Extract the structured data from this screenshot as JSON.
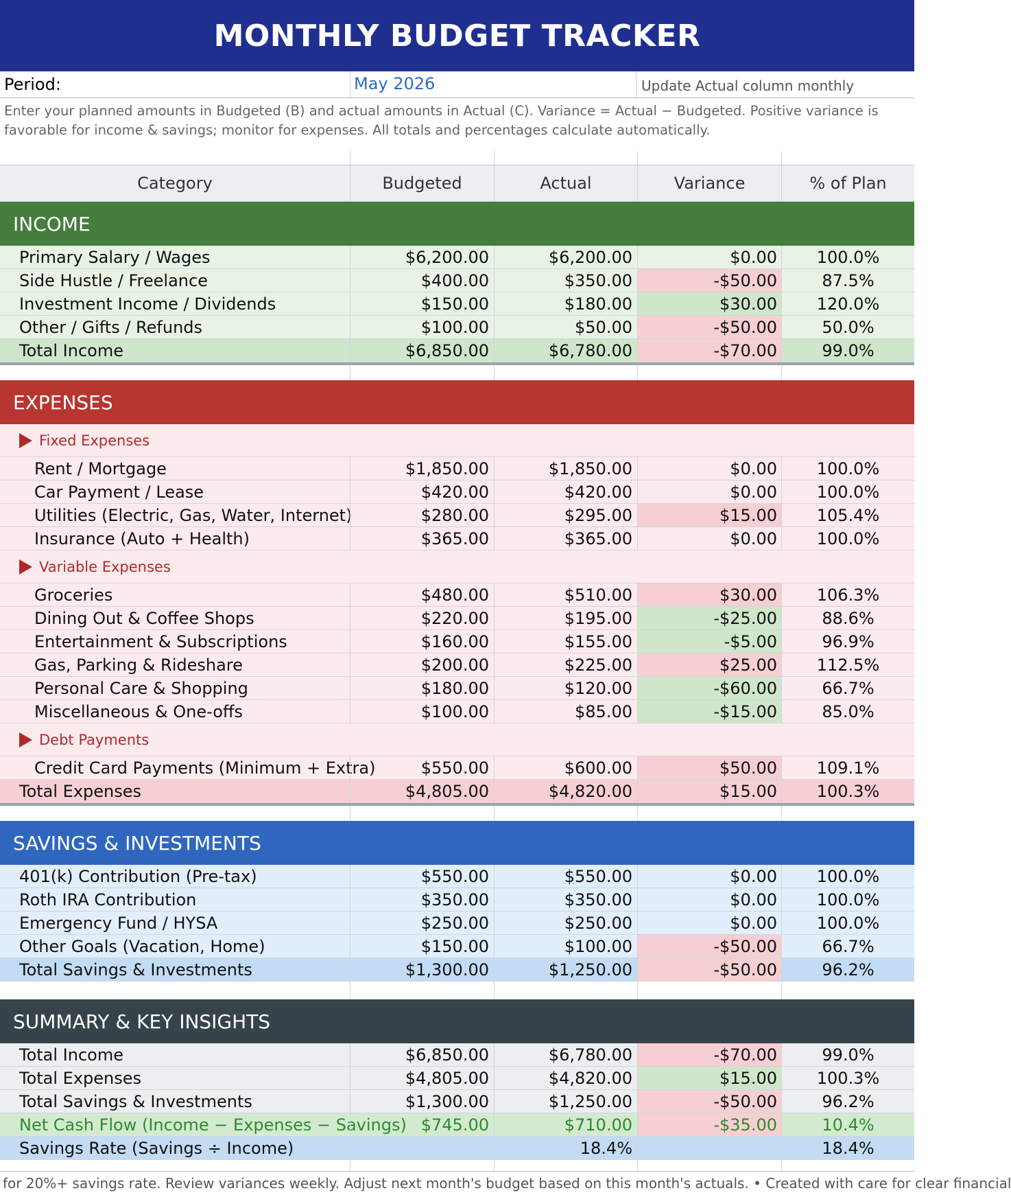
{
  "title": "MONTHLY BUDGET TRACKER",
  "period": {
    "label": "Period:",
    "value": "May 2026",
    "note": "Update Actual column monthly"
  },
  "instructions": "Enter your planned amounts in Budgeted (B) and actual amounts in Actual (C). Variance = Actual − Budgeted. Positive variance is favorable for income & savings; monitor for expenses. All totals and percentages calculate automatically.",
  "columns": [
    "Category",
    "Budgeted",
    "Actual",
    "Variance",
    "% of Plan"
  ],
  "colors": {
    "title_bar": "#1f2f8f",
    "income": "#447d3c",
    "expenses": "#b83530",
    "savings": "#2f67bf",
    "summary": "#36434b",
    "negative_fill": "#f6cfd3",
    "positive_fill": "#cfe6cb"
  },
  "income": {
    "title": "INCOME",
    "rows": [
      {
        "category": "Primary Salary / Wages",
        "budgeted": "$6,200.00",
        "actual": "$6,200.00",
        "variance": "$0.00",
        "pct": "100.0%"
      },
      {
        "category": "Side Hustle / Freelance",
        "budgeted": "$400.00",
        "actual": "$350.00",
        "variance": "-$50.00",
        "pct": "87.5%"
      },
      {
        "category": "Investment Income / Dividends",
        "budgeted": "$150.00",
        "actual": "$180.00",
        "variance": "$30.00",
        "pct": "120.0%"
      },
      {
        "category": "Other / Gifts / Refunds",
        "budgeted": "$100.00",
        "actual": "$50.00",
        "variance": "-$50.00",
        "pct": "50.0%"
      }
    ],
    "total": {
      "category": "Total Income",
      "budgeted": "$6,850.00",
      "actual": "$6,780.00",
      "variance": "-$70.00",
      "pct": "99.0%"
    }
  },
  "expenses": {
    "title": "EXPENSES",
    "fixed": {
      "label": "Fixed Expenses",
      "rows": [
        {
          "category": "Rent / Mortgage",
          "budgeted": "$1,850.00",
          "actual": "$1,850.00",
          "variance": "$0.00",
          "pct": "100.0%"
        },
        {
          "category": "Car Payment / Lease",
          "budgeted": "$420.00",
          "actual": "$420.00",
          "variance": "$0.00",
          "pct": "100.0%"
        },
        {
          "category": "Utilities (Electric, Gas, Water, Internet)",
          "budgeted": "$280.00",
          "actual": "$295.00",
          "variance": "$15.00",
          "pct": "105.4%"
        },
        {
          "category": "Insurance (Auto + Health)",
          "budgeted": "$365.00",
          "actual": "$365.00",
          "variance": "$0.00",
          "pct": "100.0%"
        }
      ]
    },
    "variable": {
      "label": "Variable Expenses",
      "rows": [
        {
          "category": "Groceries",
          "budgeted": "$480.00",
          "actual": "$510.00",
          "variance": "$30.00",
          "pct": "106.3%"
        },
        {
          "category": "Dining Out & Coffee Shops",
          "budgeted": "$220.00",
          "actual": "$195.00",
          "variance": "-$25.00",
          "pct": "88.6%"
        },
        {
          "category": "Entertainment & Subscriptions",
          "budgeted": "$160.00",
          "actual": "$155.00",
          "variance": "-$5.00",
          "pct": "96.9%"
        },
        {
          "category": "Gas, Parking & Rideshare",
          "budgeted": "$200.00",
          "actual": "$225.00",
          "variance": "$25.00",
          "pct": "112.5%"
        },
        {
          "category": "Personal Care & Shopping",
          "budgeted": "$180.00",
          "actual": "$120.00",
          "variance": "-$60.00",
          "pct": "66.7%"
        },
        {
          "category": "Miscellaneous & One-offs",
          "budgeted": "$100.00",
          "actual": "$85.00",
          "variance": "-$15.00",
          "pct": "85.0%"
        }
      ]
    },
    "debt": {
      "label": "Debt Payments",
      "rows": [
        {
          "category": "Credit Card Payments (Minimum + Extra)",
          "budgeted": "$550.00",
          "actual": "$600.00",
          "variance": "$50.00",
          "pct": "109.1%"
        }
      ]
    },
    "total": {
      "category": "Total Expenses",
      "budgeted": "$4,805.00",
      "actual": "$4,820.00",
      "variance": "$15.00",
      "pct": "100.3%"
    }
  },
  "savings": {
    "title": "SAVINGS & INVESTMENTS",
    "rows": [
      {
        "category": "401(k) Contribution (Pre-tax)",
        "budgeted": "$550.00",
        "actual": "$550.00",
        "variance": "$0.00",
        "pct": "100.0%"
      },
      {
        "category": "Roth IRA Contribution",
        "budgeted": "$350.00",
        "actual": "$350.00",
        "variance": "$0.00",
        "pct": "100.0%"
      },
      {
        "category": "Emergency Fund / HYSA",
        "budgeted": "$250.00",
        "actual": "$250.00",
        "variance": "$0.00",
        "pct": "100.0%"
      },
      {
        "category": "Other Goals (Vacation, Home)",
        "budgeted": "$150.00",
        "actual": "$100.00",
        "variance": "-$50.00",
        "pct": "66.7%"
      }
    ],
    "total": {
      "category": "Total Savings & Investments",
      "budgeted": "$1,300.00",
      "actual": "$1,250.00",
      "variance": "-$50.00",
      "pct": "96.2%"
    }
  },
  "summary": {
    "title": "SUMMARY & KEY INSIGHTS",
    "rows": [
      {
        "category": "Total Income",
        "budgeted": "$6,850.00",
        "actual": "$6,780.00",
        "variance": "-$70.00",
        "pct": "99.0%"
      },
      {
        "category": "Total Expenses",
        "budgeted": "$4,805.00",
        "actual": "$4,820.00",
        "variance": "$15.00",
        "pct": "100.3%"
      },
      {
        "category": "Total Savings & Investments",
        "budgeted": "$1,300.00",
        "actual": "$1,250.00",
        "variance": "-$50.00",
        "pct": "96.2%"
      }
    ],
    "net": {
      "category": "Net Cash Flow (Income − Expenses − Savings)",
      "budgeted": "$745.00",
      "actual": "$710.00",
      "variance": "-$35.00",
      "pct": "10.4%"
    },
    "rate": {
      "category": "Savings Rate (Savings ÷ Income)",
      "actual": "18.4%",
      "pct": "18.4%"
    }
  },
  "footer": "for 20%+ savings rate. Review variances weekly. Adjust next month's budget based on this month's actuals.  •  Created with care for clear financial"
}
